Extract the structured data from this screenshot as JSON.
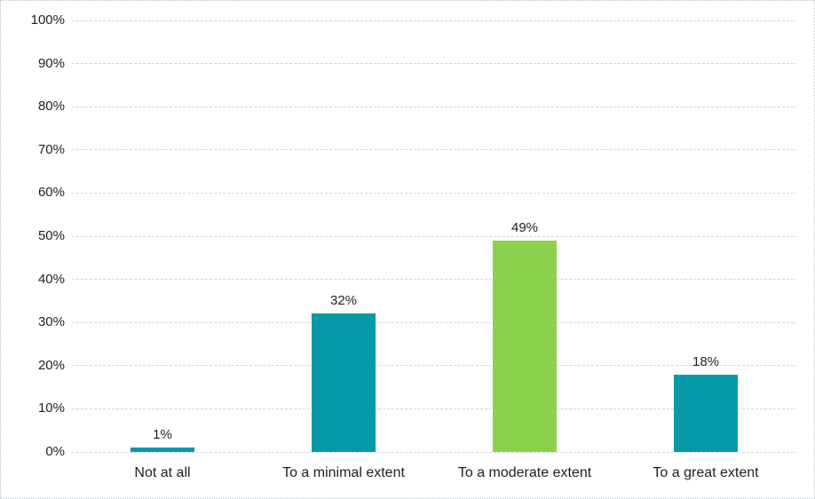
{
  "chart_data": {
    "type": "bar",
    "categories": [
      "Not at all",
      "To a minimal extent",
      "To a moderate extent",
      "To a great extent"
    ],
    "values": [
      1,
      32,
      49,
      18
    ],
    "value_labels": [
      "1%",
      "32%",
      "49%",
      "18%"
    ],
    "bar_colors": [
      "#0899a8",
      "#0899a8",
      "#8cd14e",
      "#0899a8"
    ],
    "title": "",
    "xlabel": "",
    "ylabel": "",
    "ylim": [
      0,
      100
    ],
    "yticks": [
      "0%",
      "10%",
      "20%",
      "30%",
      "40%",
      "50%",
      "60%",
      "70%",
      "80%",
      "90%",
      "100%"
    ],
    "grid": "horizontal-dashed",
    "legend": "none",
    "colors": {
      "gridline": "#d6d6d6",
      "text": "#1f1f1f",
      "background": "#ffffff",
      "frame_border": "#b9bfc8",
      "accent_teal": "#0899a8",
      "accent_green": "#8cd14e"
    }
  }
}
